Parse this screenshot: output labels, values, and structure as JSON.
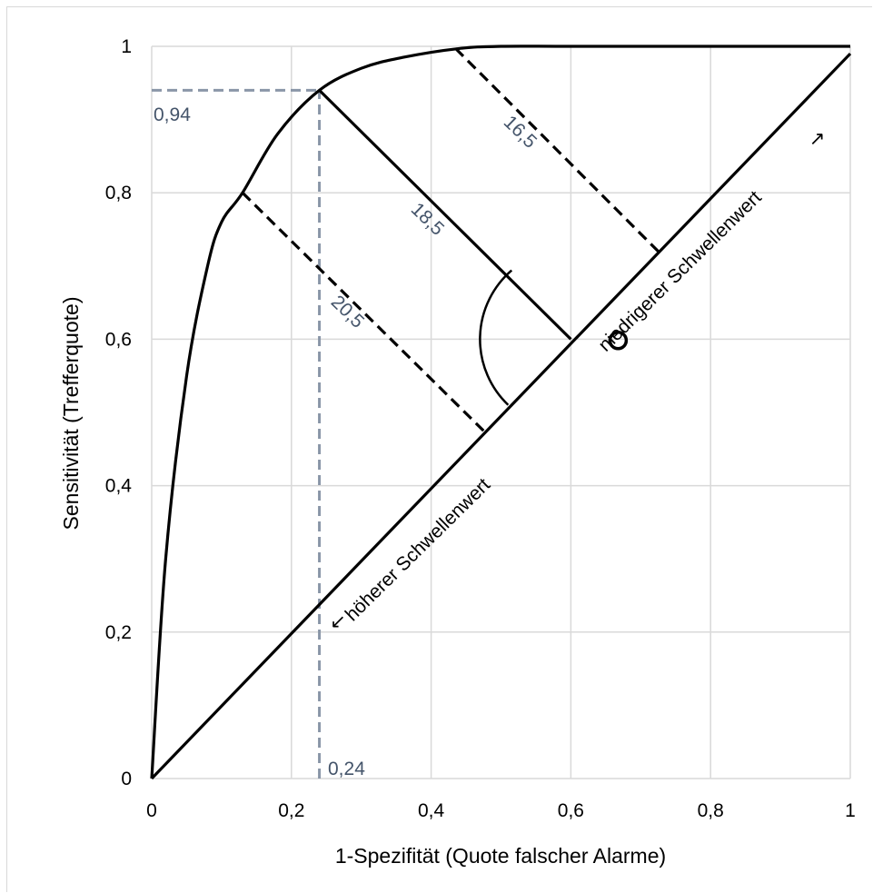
{
  "chart_data": {
    "type": "line",
    "title": "",
    "xlabel": "1-Spezifität (Quote falscher Alarme)",
    "ylabel": "Sensitivität (Trefferquote)",
    "xlim": [
      0,
      1
    ],
    "ylim": [
      0,
      1
    ],
    "x_ticks": [
      "0",
      "0,2",
      "0,4",
      "0,6",
      "0,8",
      "1"
    ],
    "y_ticks": [
      "0",
      "0,2",
      "0,4",
      "0,6",
      "0,8",
      "1"
    ],
    "grid": true,
    "series": [
      {
        "style": "solid-curve",
        "x": [
          0,
          0.02,
          0.05,
          0.08,
          0.1,
          0.13,
          0.18,
          0.24,
          0.3,
          0.36,
          0.44,
          0.5,
          0.6,
          0.8,
          1
        ],
        "y": [
          0,
          0.3,
          0.55,
          0.7,
          0.76,
          0.8,
          0.88,
          0.94,
          0.97,
          0.985,
          0.997,
          1,
          1,
          1,
          1
        ]
      },
      {
        "style": "diagonal",
        "x": [
          0,
          1
        ],
        "y": [
          0,
          0.99
        ]
      }
    ],
    "reference_lines": {
      "x_value": 0.24,
      "x_label": "0,24",
      "y_value": 0.94,
      "y_label": "0,94"
    },
    "distance_lines": [
      {
        "label": "16,5",
        "style": "dashed",
        "from": [
          0.435,
          0.997
        ],
        "to": [
          0.725,
          0.72
        ]
      },
      {
        "label": "18,5",
        "style": "solid",
        "from": [
          0.24,
          0.94
        ],
        "to": [
          0.6,
          0.6
        ]
      },
      {
        "label": "20,5",
        "style": "dashed",
        "from": [
          0.13,
          0.8
        ],
        "to": [
          0.475,
          0.475
        ]
      }
    ],
    "annotations": {
      "lower_threshold": "höherer Schwellenwert",
      "higher_threshold": "niedrigerer Schwellenwert",
      "arrow_down": "↙",
      "arrow_up": "↗",
      "right_angle_symbol": "o"
    }
  }
}
